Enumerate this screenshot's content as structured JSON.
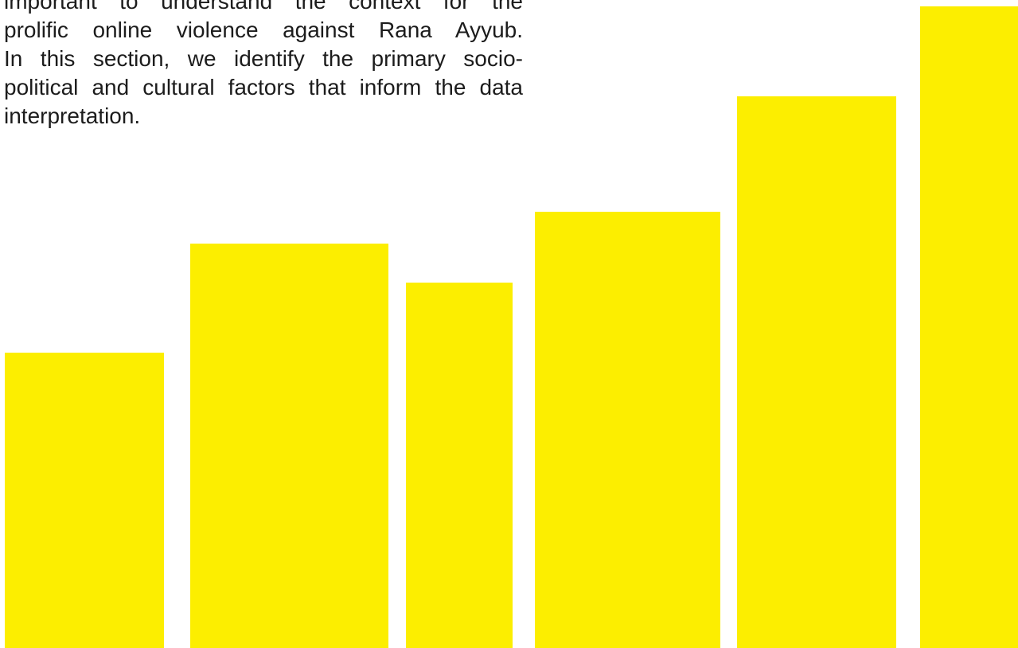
{
  "page": {
    "paragraph_lines": [
      "important to understand the context for the",
      "prolific online violence against Rana Ayyub.",
      "In this section, we identify the primary socio-",
      "political and cultural factors that inform the data",
      "interpretation."
    ]
  },
  "decoration": {
    "bar_color": "#fcee00",
    "bar_levels": [
      0.46,
      0.63,
      0.57,
      0.68,
      0.86,
      1.0
    ]
  }
}
